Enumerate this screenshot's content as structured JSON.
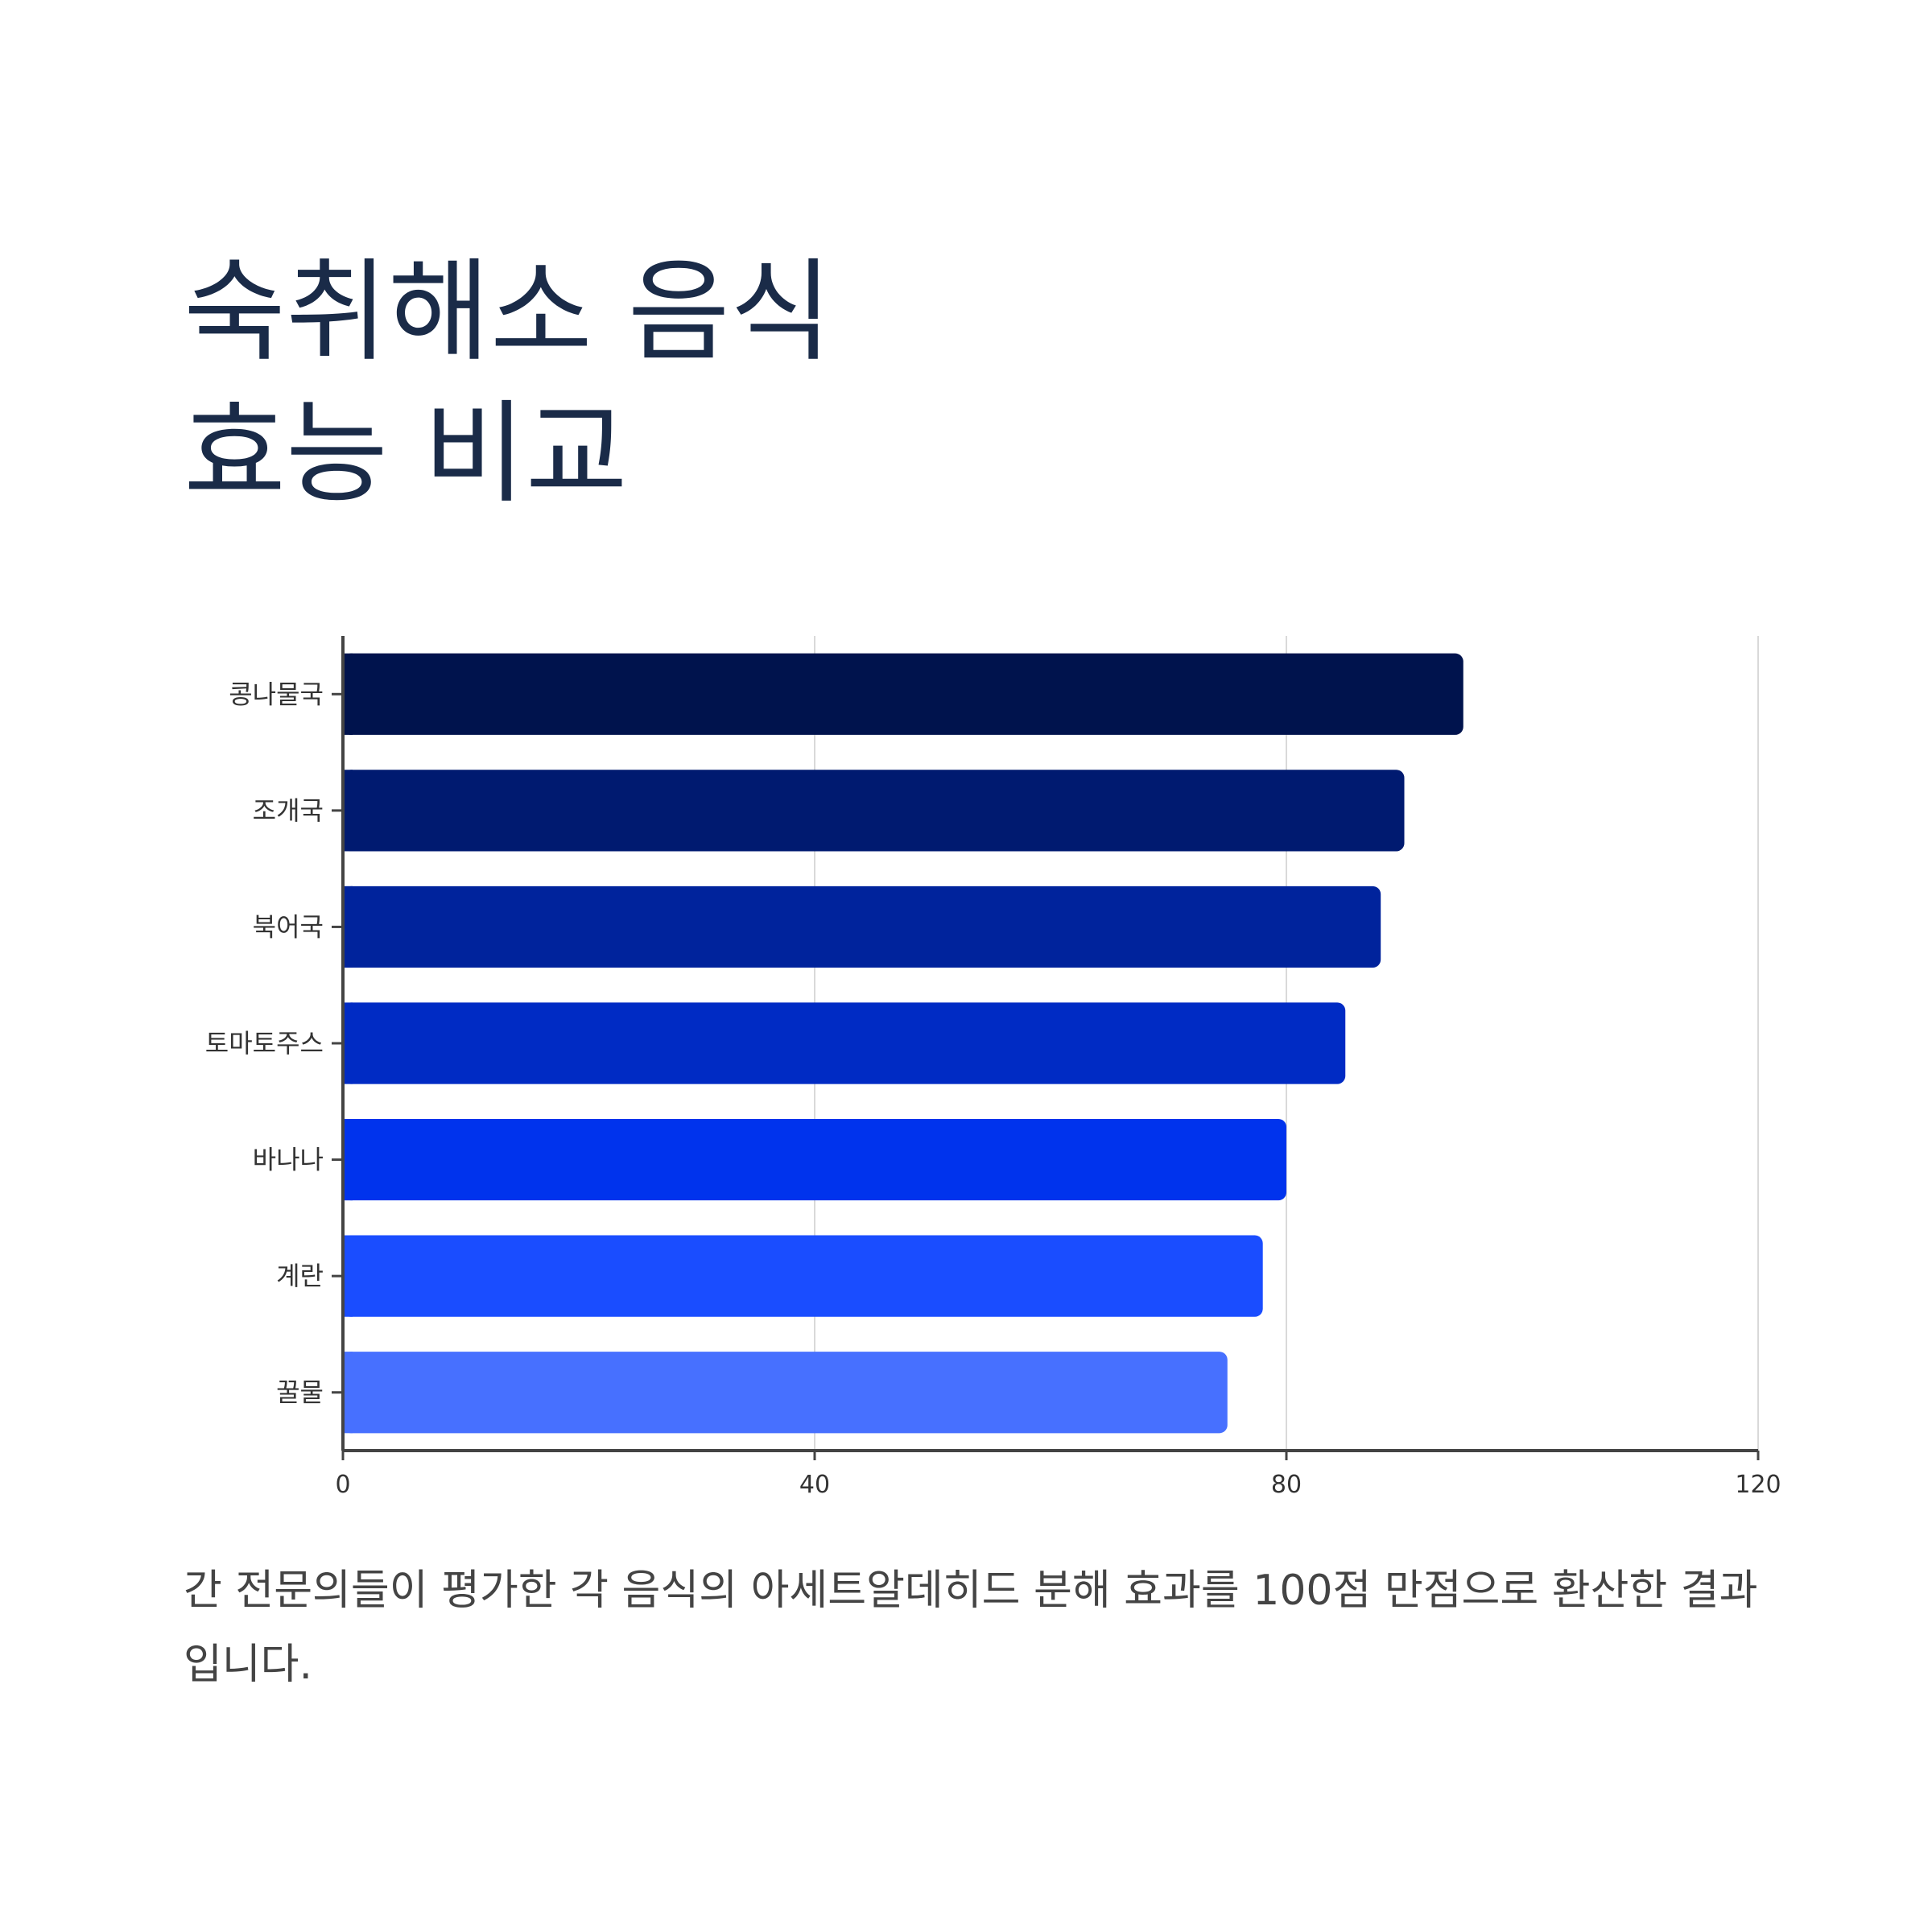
{
  "chart_data": {
    "type": "bar",
    "orientation": "horizontal",
    "title": "숙취해소 음식 효능 비교",
    "title_lines": [
      "숙취해소 음식",
      "효능 비교"
    ],
    "caption": "간 전문의들이 평가한 각 음식의 아세트알데히드 분해 효과를 100점 만점으로 환산한 결과입니다.",
    "categories": [
      "콩나물국",
      "조개국",
      "북어국",
      "토마토주스",
      "바나나",
      "계란",
      "꿀물"
    ],
    "values": [
      95,
      90,
      88,
      85,
      80,
      78,
      75
    ],
    "colors": [
      "#00134d",
      "#001a70",
      "#00239c",
      "#002bc4",
      "#0033ed",
      "#1a4dff",
      "#4770ff"
    ],
    "xlim": [
      0,
      120
    ],
    "xticks": [
      0,
      40,
      80,
      120
    ],
    "xlabel": "",
    "ylabel": "",
    "grid": true
  }
}
